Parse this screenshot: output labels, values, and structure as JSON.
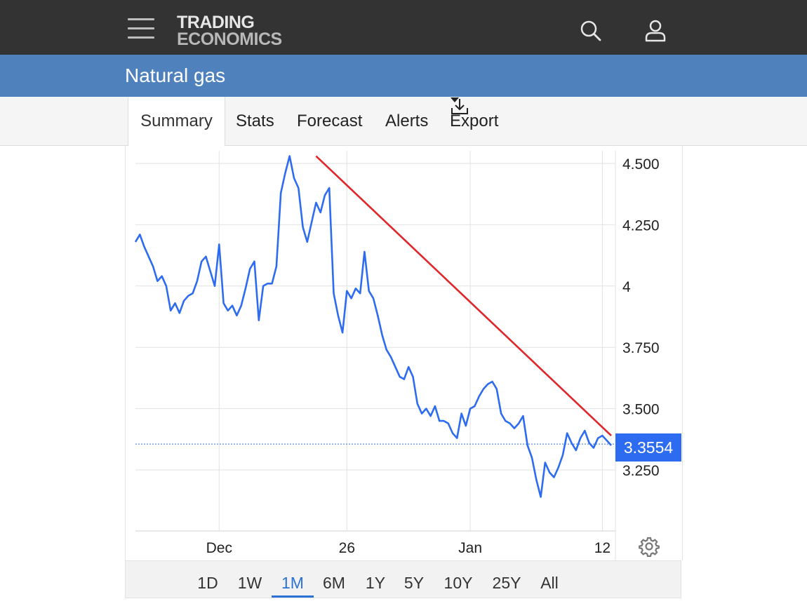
{
  "header": {
    "logo_line1": "TRADING",
    "logo_line2": "ECONOMICS",
    "icons": [
      "hamburger-menu-icon",
      "search-icon",
      "user-icon"
    ]
  },
  "page": {
    "title": "Natural gas"
  },
  "tabs": [
    {
      "label": "Summary",
      "active": true
    },
    {
      "label": "Stats"
    },
    {
      "label": "Forecast"
    },
    {
      "label": "Alerts"
    },
    {
      "label": "Export",
      "icon": "download-icon",
      "dropdown": true
    }
  ],
  "chart_data": {
    "type": "line",
    "title": "",
    "xlabel": "",
    "ylabel": "",
    "y_axis_position": "right",
    "ylim": [
      3.0,
      4.55
    ],
    "yticks": [
      3.25,
      3.5,
      3.75,
      4,
      4.25,
      4.5
    ],
    "ytick_labels": [
      "3.250",
      "3.500",
      "3.750",
      "4",
      "4.250",
      "4.500"
    ],
    "xlim": [
      0,
      54
    ],
    "xticks": [
      9.5,
      24,
      38,
      53
    ],
    "xtick_labels": [
      "Dec",
      "26",
      "Jan",
      "12"
    ],
    "grid": true,
    "last_value": 3.3554,
    "last_value_label": "3.3554",
    "series": [
      {
        "color": "#2d6cf0",
        "x": [
          0,
          0.5,
          1,
          1.5,
          2,
          2.5,
          3,
          3.5,
          4,
          4.5,
          5,
          5.5,
          6,
          6.5,
          7,
          7.5,
          8,
          8.5,
          9,
          9.5,
          10,
          10.5,
          11,
          11.5,
          12,
          12.5,
          13,
          13.5,
          14,
          14.5,
          15,
          15.5,
          16,
          16.5,
          17,
          17.5,
          18,
          18.5,
          19,
          19.5,
          20,
          20.5,
          21,
          21.5,
          22,
          22.5,
          23,
          23.5,
          24,
          24.5,
          25,
          25.5,
          26,
          26.5,
          27,
          27.5,
          28,
          28.5,
          29,
          29.5,
          30,
          30.5,
          31,
          31.5,
          32,
          32.5,
          33,
          33.5,
          34,
          34.5,
          35,
          35.5,
          36,
          36.5,
          37,
          37.5,
          38,
          38.5,
          39,
          39.5,
          40,
          40.5,
          41,
          41.5,
          42,
          42.5,
          43,
          43.5,
          44,
          44.5,
          45,
          45.5,
          46,
          46.5,
          47,
          47.5,
          48,
          48.5,
          49,
          49.5,
          50,
          50.5,
          51,
          51.5,
          52,
          52.5,
          53,
          53.5,
          54
        ],
        "values": [
          4.18,
          4.21,
          4.16,
          4.12,
          4.08,
          4.02,
          4.04,
          4.0,
          3.9,
          3.93,
          3.89,
          3.94,
          3.96,
          3.97,
          4.02,
          4.1,
          4.12,
          4.06,
          4.0,
          4.17,
          3.93,
          3.9,
          3.92,
          3.88,
          3.92,
          3.99,
          4.07,
          4.1,
          3.86,
          4.0,
          4.01,
          4.01,
          4.08,
          4.38,
          4.46,
          4.53,
          4.44,
          4.4,
          4.24,
          4.18,
          4.26,
          4.34,
          4.3,
          4.37,
          4.4,
          3.97,
          3.88,
          3.81,
          3.98,
          3.95,
          3.99,
          3.97,
          4.14,
          3.98,
          3.95,
          3.88,
          3.8,
          3.74,
          3.71,
          3.67,
          3.63,
          3.62,
          3.67,
          3.63,
          3.52,
          3.48,
          3.5,
          3.47,
          3.51,
          3.45,
          3.45,
          3.44,
          3.4,
          3.38,
          3.48,
          3.43,
          3.5,
          3.51,
          3.55,
          3.58,
          3.6,
          3.61,
          3.58,
          3.48,
          3.45,
          3.44,
          3.42,
          3.44,
          3.47,
          3.35,
          3.3,
          3.21,
          3.14,
          3.28,
          3.24,
          3.22,
          3.26,
          3.31,
          3.4,
          3.36,
          3.33,
          3.38,
          3.41,
          3.36,
          3.34,
          3.38,
          3.39,
          3.37,
          3.35
        ]
      }
    ],
    "trendline": {
      "color": "#e0262b",
      "x": [
        20.5,
        54
      ],
      "y": [
        4.53,
        3.39
      ]
    }
  },
  "range_buttons": [
    {
      "label": "1D"
    },
    {
      "label": "1W"
    },
    {
      "label": "1M",
      "active": true
    },
    {
      "label": "6M"
    },
    {
      "label": "1Y"
    },
    {
      "label": "5Y"
    },
    {
      "label": "10Y"
    },
    {
      "label": "25Y"
    },
    {
      "label": "All"
    }
  ],
  "colors": {
    "header_bg": "#333333",
    "title_bg": "#4f81bd",
    "accent": "#2d6cf0",
    "trend": "#e0262b"
  }
}
